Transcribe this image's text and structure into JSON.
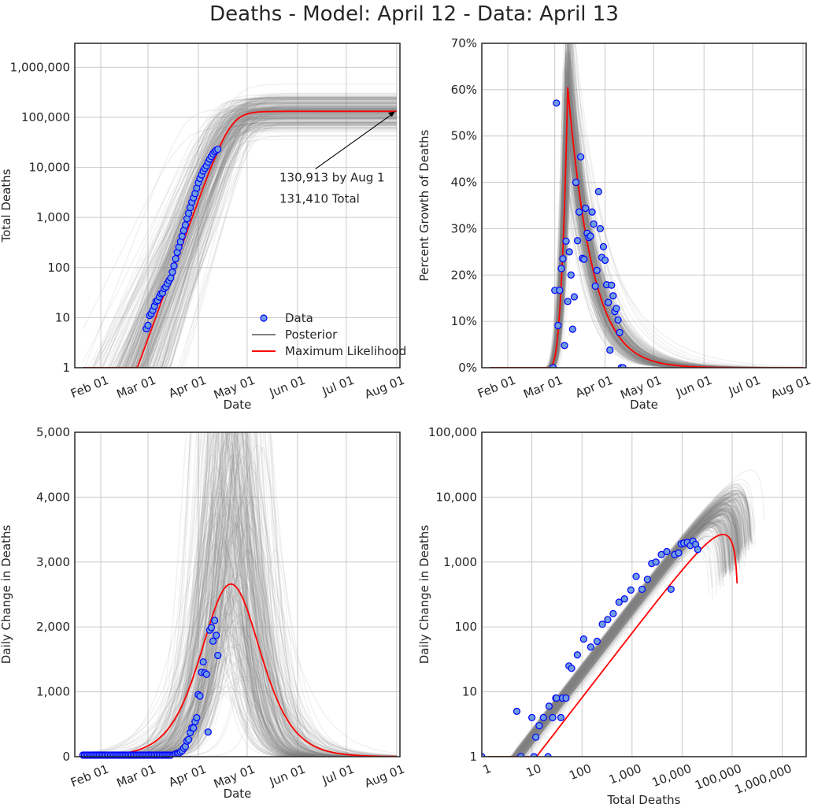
{
  "figure": {
    "title": "Deaths - Model: April 12 - Data: April 13"
  },
  "colors": {
    "data_face": "#6f9ddf",
    "data_edge": "#0000ff",
    "posterior": "#808080",
    "ml": "#ff0000",
    "grid": "#c8c8c8",
    "frame": "#262626"
  },
  "legend": {
    "data": "Data",
    "posterior": "Posterior",
    "ml": "Maximum Likelihood"
  },
  "chart_data": [
    {
      "id": "total",
      "type": "line",
      "xaxis": "date",
      "xlabel": "Date",
      "ylabel": "Total Deaths",
      "yscale": "log",
      "ylim": [
        1,
        3000000
      ],
      "xlim": [
        "2020-01-16",
        "2020-08-03"
      ],
      "xticks": [
        "Feb 01",
        "Mar 01",
        "Apr 01",
        "May 01",
        "Jun 01",
        "Jul 01",
        "Aug 01"
      ],
      "yticks": [
        "1",
        "10",
        "100",
        "1,000",
        "10,000",
        "100,000",
        "1,000,000"
      ],
      "grid": true,
      "legend_position": "lower-right",
      "annotations": [
        "130,913 by Aug 1",
        "131,410 Total"
      ],
      "data_x": [
        "2020-02-29",
        "2020-03-01",
        "2020-03-02",
        "2020-03-03",
        "2020-03-04",
        "2020-03-05",
        "2020-03-06",
        "2020-03-07",
        "2020-03-08",
        "2020-03-09",
        "2020-03-10",
        "2020-03-11",
        "2020-03-12",
        "2020-03-13",
        "2020-03-14",
        "2020-03-15",
        "2020-03-16",
        "2020-03-17",
        "2020-03-18",
        "2020-03-19",
        "2020-03-20",
        "2020-03-21",
        "2020-03-22",
        "2020-03-23",
        "2020-03-24",
        "2020-03-25",
        "2020-03-26",
        "2020-03-27",
        "2020-03-28",
        "2020-03-29",
        "2020-03-30",
        "2020-03-31",
        "2020-04-01",
        "2020-04-02",
        "2020-04-03",
        "2020-04-04",
        "2020-04-05",
        "2020-04-06",
        "2020-04-07",
        "2020-04-08",
        "2020-04-09",
        "2020-04-10",
        "2020-04-11",
        "2020-04-12",
        "2020-04-13"
      ],
      "data_y": [
        6,
        7,
        11,
        12,
        14,
        17,
        21,
        22,
        26,
        30,
        31,
        38,
        41,
        48,
        55,
        62,
        81,
        108,
        150,
        200,
        255,
        327,
        420,
        550,
        706,
        946,
        1209,
        1581,
        2026,
        2467,
        3005,
        3848,
        4941,
        6000,
        7100,
        8491,
        9600,
        10800,
        12700,
        14600,
        16500,
        18600,
        20500,
        22000,
        23000
      ],
      "ml_peak_final": 131410
    },
    {
      "id": "growth",
      "type": "line",
      "xaxis": "date",
      "xlabel": "Date",
      "ylabel": "Percent Growth of Deaths",
      "yscale": "linear",
      "ylim": [
        0,
        70
      ],
      "xlim": [
        "2020-01-16",
        "2020-08-03"
      ],
      "xticks": [
        "Feb 01",
        "Mar 01",
        "Apr 01",
        "May 01",
        "Jun 01",
        "Jul 01",
        "Aug 01"
      ],
      "yticks": [
        "0%",
        "10%",
        "20%",
        "30%",
        "40%",
        "50%",
        "60%",
        "70%"
      ],
      "grid": true,
      "data_x": [
        "2020-02-29",
        "2020-03-01",
        "2020-03-02",
        "2020-03-03",
        "2020-03-04",
        "2020-03-05",
        "2020-03-06",
        "2020-03-07",
        "2020-03-08",
        "2020-03-09",
        "2020-03-10",
        "2020-03-11",
        "2020-03-12",
        "2020-03-13",
        "2020-03-14",
        "2020-03-15",
        "2020-03-16",
        "2020-03-17",
        "2020-03-18",
        "2020-03-19",
        "2020-03-20",
        "2020-03-21",
        "2020-03-22",
        "2020-03-23",
        "2020-03-24",
        "2020-03-25",
        "2020-03-26",
        "2020-03-27",
        "2020-03-28",
        "2020-03-29",
        "2020-03-30",
        "2020-03-31",
        "2020-04-01",
        "2020-04-02",
        "2020-04-03",
        "2020-04-04",
        "2020-04-05",
        "2020-04-06",
        "2020-04-07",
        "2020-04-08",
        "2020-04-09",
        "2020-04-10",
        "2020-04-11",
        "2020-04-12"
      ],
      "data_y": [
        0,
        16.7,
        57.1,
        9.1,
        16.7,
        21.4,
        23.5,
        4.8,
        27.3,
        14.3,
        25,
        20,
        8.3,
        15.3,
        40,
        27.4,
        33.6,
        45.5,
        23.6,
        23.4,
        34.4,
        29,
        28.1,
        28.4,
        33.6,
        31,
        17.6,
        21,
        38,
        30,
        23.8,
        26.1,
        23.2,
        17.9,
        14.1,
        3.8,
        17.8,
        15.5,
        12.1,
        12.8,
        10.3,
        7.6,
        0,
        0
      ],
      "ml_peak_pct": 60.5
    },
    {
      "id": "daily",
      "type": "line",
      "xaxis": "date",
      "xlabel": "Date",
      "ylabel": "Daily Change in Deaths",
      "yscale": "linear",
      "ylim": [
        0,
        5000
      ],
      "xlim": [
        "2020-01-16",
        "2020-08-03"
      ],
      "xticks": [
        "Feb 01",
        "Mar 01",
        "Apr 01",
        "May 01",
        "Jun 01",
        "Jul 01",
        "Aug 01"
      ],
      "yticks": [
        "0",
        "1,000",
        "2,000",
        "3,000",
        "4,000",
        "5,000"
      ],
      "grid": true,
      "data_x": [
        "2020-03-16",
        "2020-03-17",
        "2020-03-18",
        "2020-03-19",
        "2020-03-20",
        "2020-03-21",
        "2020-03-22",
        "2020-03-23",
        "2020-03-24",
        "2020-03-25",
        "2020-03-26",
        "2020-03-27",
        "2020-03-28",
        "2020-03-29",
        "2020-03-30",
        "2020-03-31",
        "2020-04-01",
        "2020-04-02",
        "2020-04-03",
        "2020-04-04",
        "2020-04-05",
        "2020-04-06",
        "2020-04-07",
        "2020-04-08",
        "2020-04-09",
        "2020-04-10",
        "2020-04-11",
        "2020-04-12",
        "2020-04-13"
      ],
      "data_y": [
        19,
        27,
        42,
        50,
        55,
        72,
        93,
        130,
        156,
        240,
        263,
        372,
        445,
        441,
        538,
        601,
        955,
        935,
        1300,
        1460,
        1290,
        1270,
        380,
        1950,
        1990,
        1780,
        2100,
        1870,
        1560
      ],
      "ml_peak": 2650,
      "ml_peak_date": "2020-04-21"
    },
    {
      "id": "phase",
      "type": "scatter",
      "xlabel": "Total Deaths",
      "ylabel": "Daily Change in Deaths",
      "xscale": "log",
      "yscale": "log",
      "xlim": [
        1,
        3000000
      ],
      "ylim": [
        1,
        100000
      ],
      "xticks": [
        "1",
        "10",
        "100",
        "1,000",
        "10,000",
        "100,000",
        "1,000,000"
      ],
      "yticks": [
        "1",
        "10",
        "100",
        "1,000",
        "10,000",
        "100,000"
      ],
      "grid": true,
      "data_x": [
        1,
        5,
        6,
        10,
        11,
        12,
        14,
        17,
        21,
        22,
        26,
        30,
        31,
        38,
        41,
        48,
        55,
        62,
        81,
        108,
        150,
        200,
        255,
        327,
        420,
        550,
        706,
        946,
        1209,
        1581,
        2026,
        2467,
        3005,
        3848,
        4941,
        6000,
        7100,
        8491,
        9600,
        10800,
        12700,
        14600,
        16500,
        18600,
        20500
      ],
      "data_y": [
        1,
        5,
        1,
        4,
        1,
        2,
        3,
        4,
        1,
        6,
        4,
        8,
        8,
        4,
        8,
        8,
        25,
        23,
        37,
        65,
        49,
        60,
        110,
        130,
        160,
        240,
        270,
        370,
        600,
        380,
        540,
        950,
        1000,
        1300,
        1450,
        380,
        1300,
        1380,
        1900,
        1950,
        2000,
        1800,
        2100,
        1870,
        1560
      ]
    }
  ]
}
